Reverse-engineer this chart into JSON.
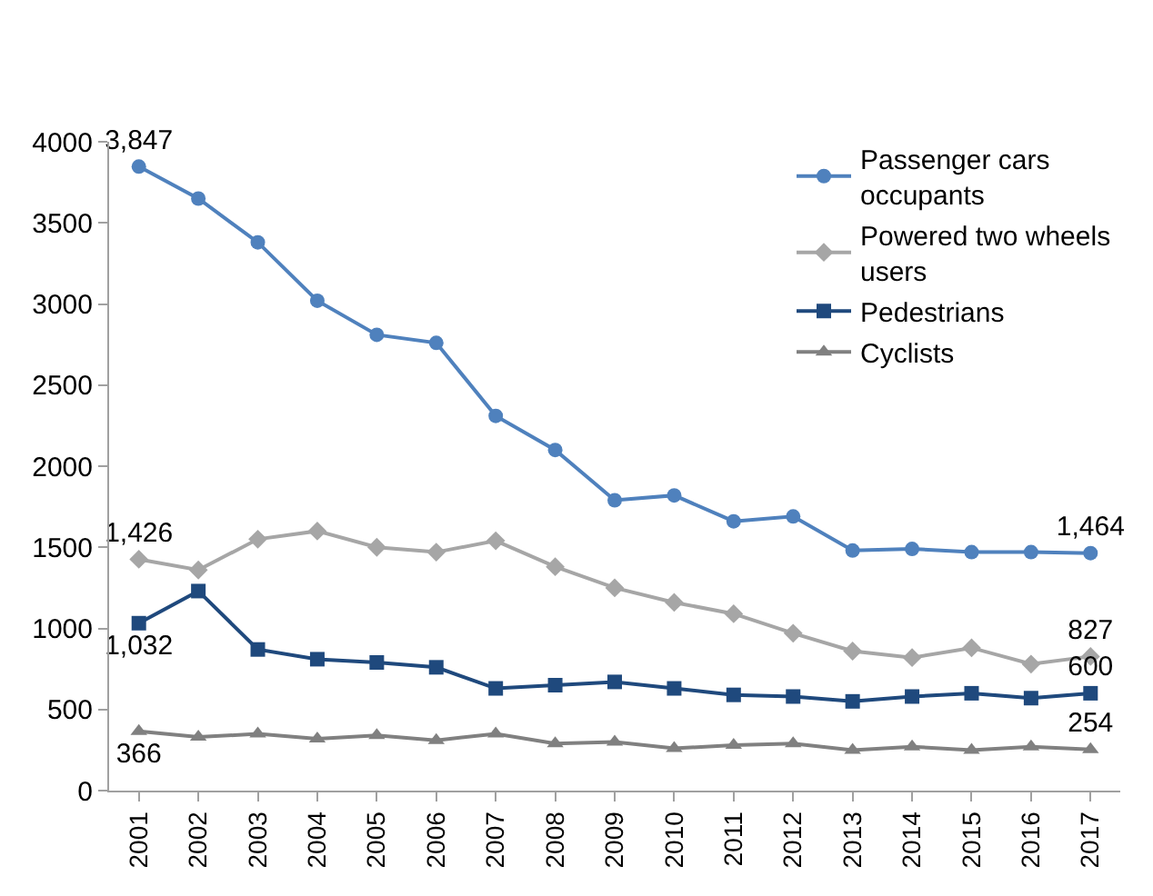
{
  "chart_data": {
    "type": "line",
    "categories": [
      "2001",
      "2002",
      "2003",
      "2004",
      "2005",
      "2006",
      "2007",
      "2008",
      "2009",
      "2010",
      "2011",
      "2012",
      "2013",
      "2014",
      "2015",
      "2016",
      "2017"
    ],
    "series": [
      {
        "name": "Passenger cars occupants",
        "color": "#4f81bd",
        "marker": "circle",
        "values": [
          3847,
          3650,
          3380,
          3020,
          2810,
          2760,
          2310,
          2100,
          1790,
          1820,
          1660,
          1690,
          1480,
          1490,
          1470,
          1470,
          1464
        ],
        "value_labels": [
          "3,847",
          null,
          null,
          null,
          null,
          null,
          null,
          null,
          null,
          null,
          null,
          null,
          null,
          null,
          null,
          null,
          "1,464"
        ]
      },
      {
        "name": "Powered two wheels users",
        "color": "#a6a6a6",
        "marker": "diamond",
        "values": [
          1426,
          1360,
          1550,
          1600,
          1500,
          1470,
          1540,
          1380,
          1250,
          1160,
          1090,
          970,
          860,
          820,
          880,
          780,
          827
        ],
        "value_labels": [
          "1,426",
          null,
          null,
          null,
          null,
          null,
          null,
          null,
          null,
          null,
          null,
          null,
          null,
          null,
          null,
          null,
          "827"
        ]
      },
      {
        "name": "Pedestrians",
        "color": "#1f497d",
        "marker": "square",
        "values": [
          1032,
          1230,
          870,
          810,
          790,
          760,
          630,
          650,
          670,
          630,
          590,
          580,
          550,
          580,
          600,
          570,
          600
        ],
        "value_labels": [
          "1,032",
          null,
          null,
          null,
          null,
          null,
          null,
          null,
          null,
          null,
          null,
          null,
          null,
          null,
          null,
          null,
          "600"
        ]
      },
      {
        "name": "Cyclists",
        "color": "#808080",
        "marker": "triangle",
        "values": [
          366,
          330,
          350,
          320,
          340,
          310,
          350,
          290,
          300,
          260,
          280,
          290,
          250,
          270,
          250,
          270,
          254
        ],
        "value_labels": [
          "366",
          null,
          null,
          null,
          null,
          null,
          null,
          null,
          null,
          null,
          null,
          null,
          null,
          null,
          null,
          null,
          "254"
        ]
      }
    ],
    "ylim": [
      0,
      4000
    ],
    "yticks": [
      0,
      500,
      1000,
      1500,
      2000,
      2500,
      3000,
      3500,
      4000
    ],
    "legend": "top right",
    "line_style": "solid"
  }
}
